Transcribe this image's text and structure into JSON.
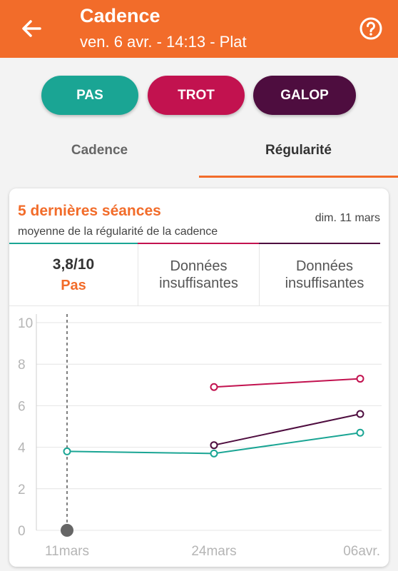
{
  "header": {
    "title": "Cadence",
    "subtitle": "ven. 6 avr. - 14:13 - Plat",
    "back_icon": "arrow-left-icon",
    "help_icon": "help-circle-icon"
  },
  "gait_buttons": [
    {
      "label": "PAS",
      "color": "#1aa594"
    },
    {
      "label": "TROT",
      "color": "#c2124f"
    },
    {
      "label": "GALOP",
      "color": "#4e0d3f"
    }
  ],
  "tabs": [
    {
      "label": "Cadence",
      "active": false
    },
    {
      "label": "Régularité",
      "active": true
    }
  ],
  "card": {
    "title": "5 dernières séances",
    "subtitle": "moyenne de la régularité de la cadence",
    "date": "dim. 11 mars",
    "stats": [
      {
        "value": "3,8/10",
        "label": "Pas"
      },
      {
        "text_line1": "Données",
        "text_line2": "insuffisantes"
      },
      {
        "text_line1": "Données",
        "text_line2": "insuffisantes"
      }
    ]
  },
  "colors": {
    "accent": "#f26c2a",
    "pas": "#1aa594",
    "trot": "#c2124f",
    "galop": "#4e0d3f"
  },
  "chart_data": {
    "type": "line",
    "categories": [
      "11mars",
      "24mars",
      "06avr."
    ],
    "ylim": [
      0,
      10
    ],
    "yticks": [
      "0",
      "2",
      "4",
      "6",
      "8",
      "10"
    ],
    "grid": true,
    "series": [
      {
        "values": [
          3.8,
          3.7,
          4.7
        ],
        "color": "#1aa594"
      },
      {
        "values": [
          null,
          6.9,
          7.3
        ],
        "color": "#c2124f"
      },
      {
        "values": [
          null,
          4.1,
          5.6
        ],
        "color": "#4e0d3f"
      }
    ],
    "marker": {
      "category": "11mars",
      "value": 0
    }
  }
}
